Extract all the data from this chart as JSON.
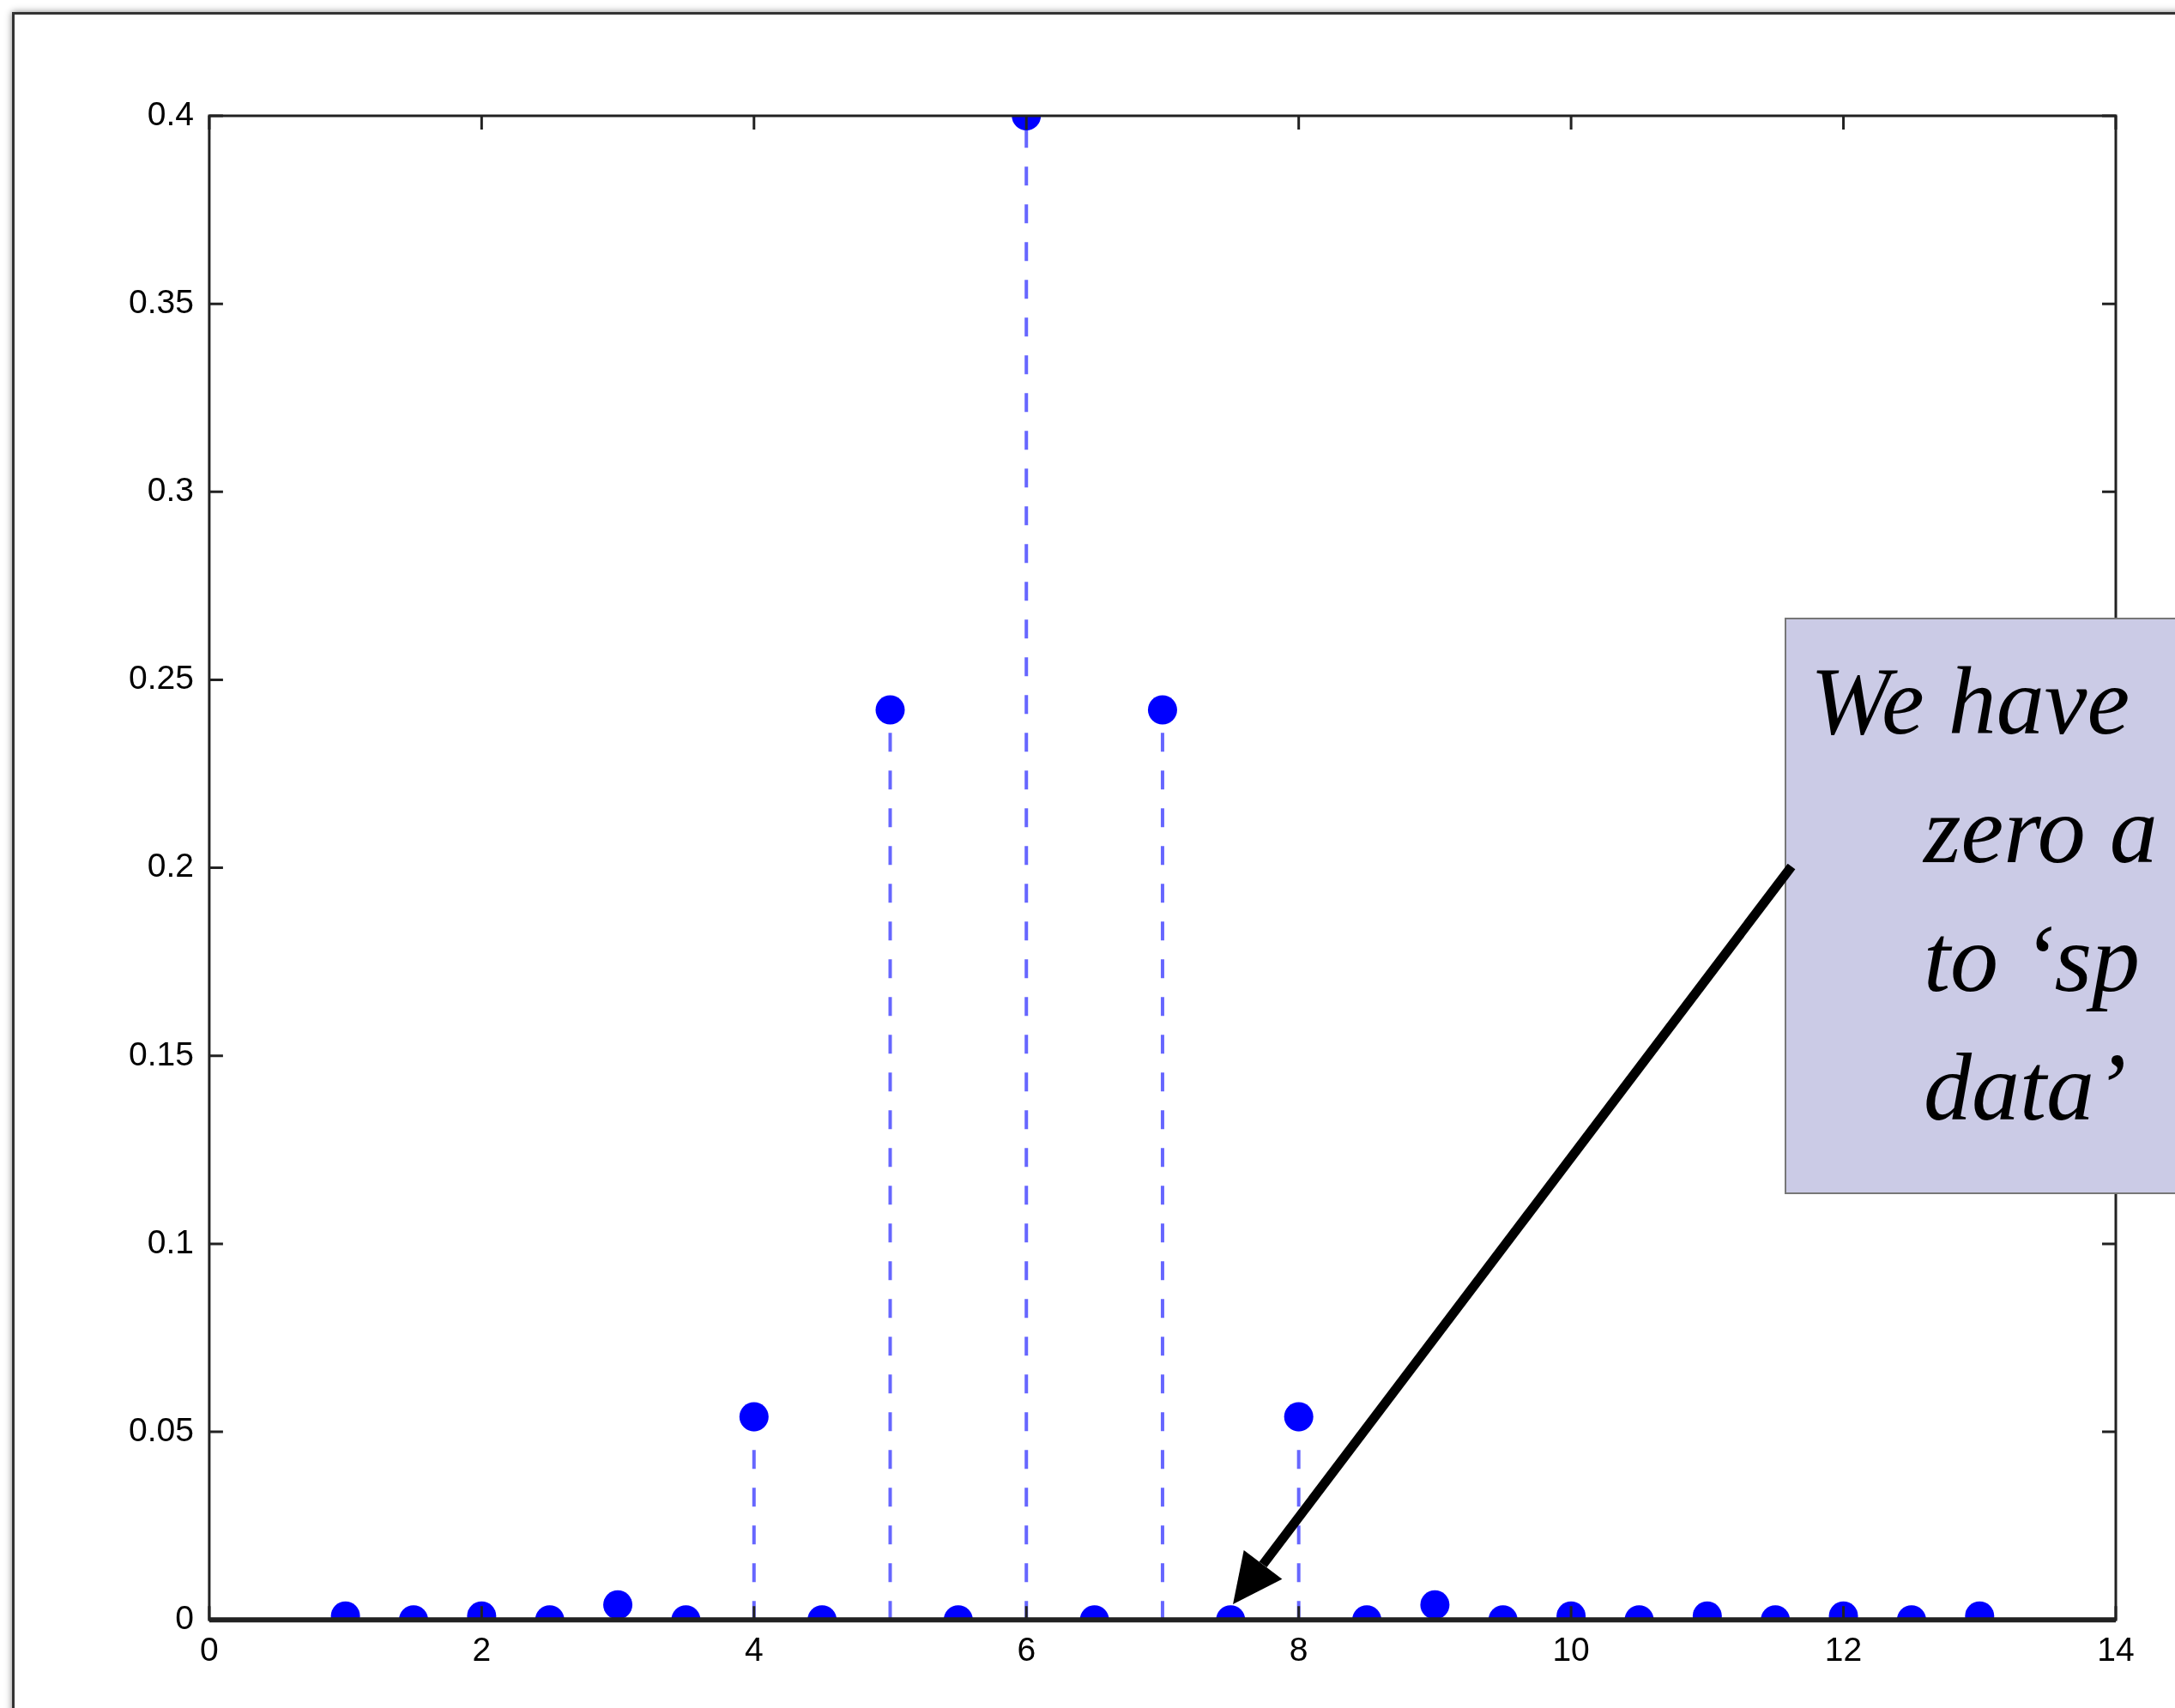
{
  "chart_data": {
    "type": "lollipop",
    "x": [
      1,
      1.5,
      2,
      2.5,
      3,
      3.5,
      4,
      4.5,
      5,
      5.5,
      6,
      6.5,
      7,
      7.5,
      8,
      8.5,
      9,
      9.5,
      10,
      10.5,
      11,
      11.5,
      12,
      12.5,
      13
    ],
    "series": [
      {
        "color": "#0000ff",
        "values": [
          0.001,
          0,
          0.001,
          0,
          0.004,
          0,
          0.054,
          0,
          0.242,
          0,
          0.4,
          0,
          0.242,
          0,
          0.054,
          0,
          0.004,
          0,
          0.001,
          0,
          0.001,
          0,
          0.001,
          0,
          0.001
        ]
      }
    ],
    "xlim": [
      0,
      14
    ],
    "xticks": [
      0,
      2,
      4,
      6,
      8,
      10,
      12,
      14
    ],
    "ylim": [
      0,
      0.4
    ],
    "yticks": [
      0,
      0.05,
      0.1,
      0.15,
      0.2,
      0.25,
      0.3,
      0.35,
      0.4
    ],
    "marker": "circle",
    "line_style": "dashed",
    "annotations": [
      "We have\nzero a\nto ‘sp\ndata’"
    ]
  }
}
